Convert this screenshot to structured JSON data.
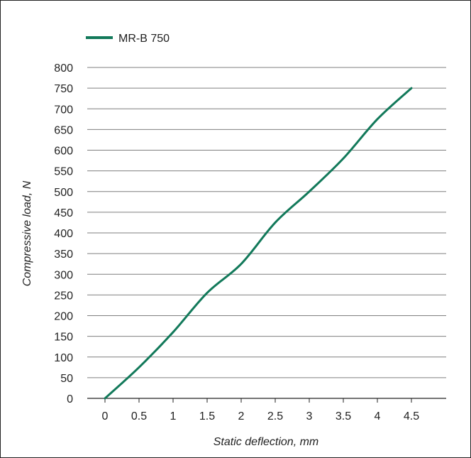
{
  "chart_data": {
    "type": "line",
    "title": "",
    "xlabel": "Static deflection, mm",
    "ylabel": "Compressive load, N",
    "xlim": [
      0,
      4.5
    ],
    "ylim": [
      0,
      800
    ],
    "xticks": [
      "0",
      "0.5",
      "1",
      "1.5",
      "2",
      "2.5",
      "3",
      "3.5",
      "4",
      "4.5"
    ],
    "yticks": [
      "0",
      "50",
      "100",
      "150",
      "200",
      "250",
      "300",
      "350",
      "400",
      "450",
      "500",
      "550",
      "600",
      "650",
      "700",
      "750",
      "800"
    ],
    "grid": "horizontal",
    "legend": "top-left",
    "colors": {
      "line": "#12795a",
      "grid": "#7f7f7f",
      "axis": "#222222"
    },
    "series": [
      {
        "name": "MR-B 750",
        "x": [
          0,
          0.5,
          1,
          1.5,
          2,
          2.5,
          3,
          3.5,
          4,
          4.5
        ],
        "y": [
          0,
          75,
          160,
          255,
          325,
          425,
          500,
          580,
          675,
          750
        ]
      }
    ]
  }
}
